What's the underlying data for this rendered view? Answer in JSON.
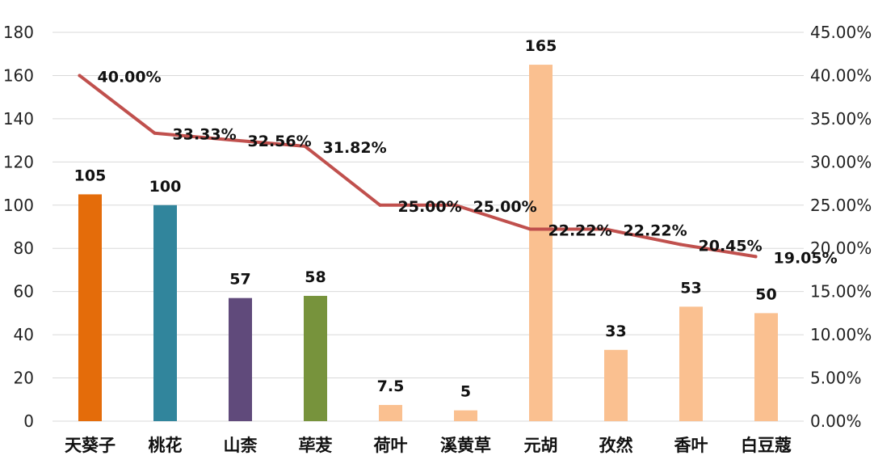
{
  "chart_data": {
    "type": "bar",
    "categories": [
      "天葵子",
      "桃花",
      "山柰",
      "荜茇",
      "荷叶",
      "溪黄草",
      "元胡",
      "孜然",
      "香叶",
      "白豆蔻"
    ],
    "series": [
      {
        "type": "bar",
        "values": [
          105,
          100,
          57,
          58,
          7.5,
          5,
          165,
          33,
          53,
          50
        ],
        "data_labels": [
          "105",
          "100",
          "57",
          "58",
          "7.5",
          "5",
          "165",
          "33",
          "53",
          "50"
        ],
        "colors": [
          "#E46C0A",
          "#31859C",
          "#604A7B",
          "#77933C",
          "#FAC090",
          "#FAC090",
          "#FAC090",
          "#FAC090",
          "#FAC090",
          "#FAC090"
        ]
      },
      {
        "type": "line",
        "axis": "right",
        "values": [
          40.0,
          33.33,
          32.56,
          31.82,
          25.0,
          25.0,
          22.22,
          22.22,
          20.45,
          19.05
        ],
        "data_labels": [
          "40.00%",
          "33.33%",
          "32.56%",
          "31.82%",
          "25.00%",
          "25.00%",
          "22.22%",
          "22.22%",
          "20.45%",
          "19.05%"
        ],
        "color": "#C0504D"
      }
    ],
    "ylim": [
      0,
      180
    ],
    "yticks": [
      "0",
      "20",
      "40",
      "60",
      "80",
      "100",
      "120",
      "140",
      "160",
      "180"
    ],
    "y2lim": [
      0,
      45
    ],
    "y2ticks": [
      "0.00%",
      "5.00%",
      "10.00%",
      "15.00%",
      "20.00%",
      "25.00%",
      "30.00%",
      "35.00%",
      "40.00%",
      "45.00%"
    ],
    "grid": true,
    "legend": "none"
  }
}
